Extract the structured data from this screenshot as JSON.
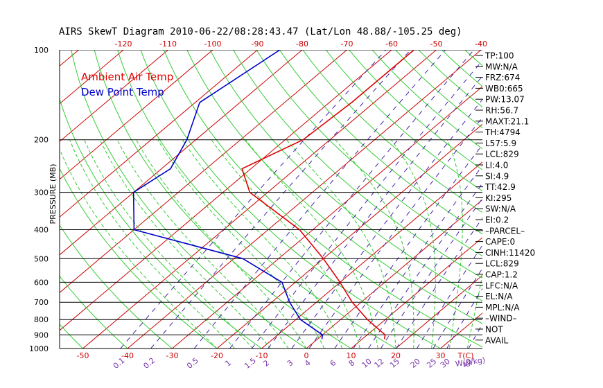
{
  "chart_data": {
    "type": "line",
    "title": "AIRS SkewT Diagram 2010-06-22/08:28:43.47 (Lat/Lon 48.88/-105.25 deg)",
    "ylabel": "PRESSURE (MB)",
    "y_scale": "log",
    "ylim": [
      1000,
      100
    ],
    "pressure_ticks": [
      100,
      200,
      300,
      400,
      500,
      600,
      700,
      800,
      900,
      1000
    ],
    "top_temp_ticks": [
      "-120",
      "-110",
      "-100",
      "-90",
      "-80",
      "-70",
      "-60",
      "-50",
      "-40"
    ],
    "bottom_temp_ticks": [
      "-50",
      "-40",
      "-30",
      "-20",
      "-10",
      "0",
      "10",
      "20",
      "30"
    ],
    "bottom_temp_unit": "T(C)",
    "mixing_ratio_ticks": [
      "0.1",
      "0.2",
      "0.5",
      "1",
      "1.5",
      "2",
      "3",
      "4",
      "6",
      "8",
      "10",
      "12",
      "15",
      "20",
      "25",
      "30",
      "40"
    ],
    "mixing_ratio_unit": "W(g/kg)",
    "legend_position": "top-left",
    "series": [
      {
        "name": "Ambient Air Temp",
        "color": "#dd0000",
        "points": [
          {
            "p": 100,
            "t": -55
          },
          {
            "p": 150,
            "t": -55
          },
          {
            "p": 200,
            "t": -56
          },
          {
            "p": 250,
            "t": -62
          },
          {
            "p": 300,
            "t": -54
          },
          {
            "p": 400,
            "t": -33
          },
          {
            "p": 500,
            "t": -20
          },
          {
            "p": 600,
            "t": -10
          },
          {
            "p": 700,
            "t": -2
          },
          {
            "p": 800,
            "t": 6
          },
          {
            "p": 900,
            "t": 14
          },
          {
            "p": 930,
            "t": 15
          }
        ]
      },
      {
        "name": "Dew Point Temp",
        "color": "#0000cc",
        "points": [
          {
            "p": 100,
            "t": -85
          },
          {
            "p": 150,
            "t": -89
          },
          {
            "p": 200,
            "t": -82
          },
          {
            "p": 250,
            "t": -78
          },
          {
            "p": 300,
            "t": -80
          },
          {
            "p": 400,
            "t": -70
          },
          {
            "p": 500,
            "t": -38
          },
          {
            "p": 600,
            "t": -23
          },
          {
            "p": 700,
            "t": -16
          },
          {
            "p": 800,
            "t": -9
          },
          {
            "p": 900,
            "t": 0
          },
          {
            "p": 930,
            "t": 1
          }
        ]
      }
    ],
    "indices": [
      "TP:100",
      "MW:N/A",
      "FRZ:674",
      "WB0:665",
      "PW:13.07",
      "RH:56.7",
      "MAXT:21.1",
      "TH:4794",
      "L57:5.9",
      "LCL:829",
      "LI:4.0",
      "SI:4.9",
      "TT:42.9",
      "KI:295",
      "SW:N/A",
      "EI:0.2",
      "–PARCEL–",
      "CAPE:0",
      "CINH:11420",
      "LCL:829",
      "CAP:1.2",
      "LFC:N/A",
      "EL:N/A",
      "MPL:N/A",
      "–WIND–",
      "NOT",
      "AVAIL"
    ],
    "colors": {
      "isotherm": "#cc0000",
      "dry_adiabat": "#33cc33",
      "moist_adiabat": "#33cc33",
      "mixing_ratio": "#4422aa",
      "isobar": "#000000",
      "mixing_label": "#7733aa",
      "top_tick": "#cc0000",
      "bottom_tick": "#cc0000"
    }
  }
}
